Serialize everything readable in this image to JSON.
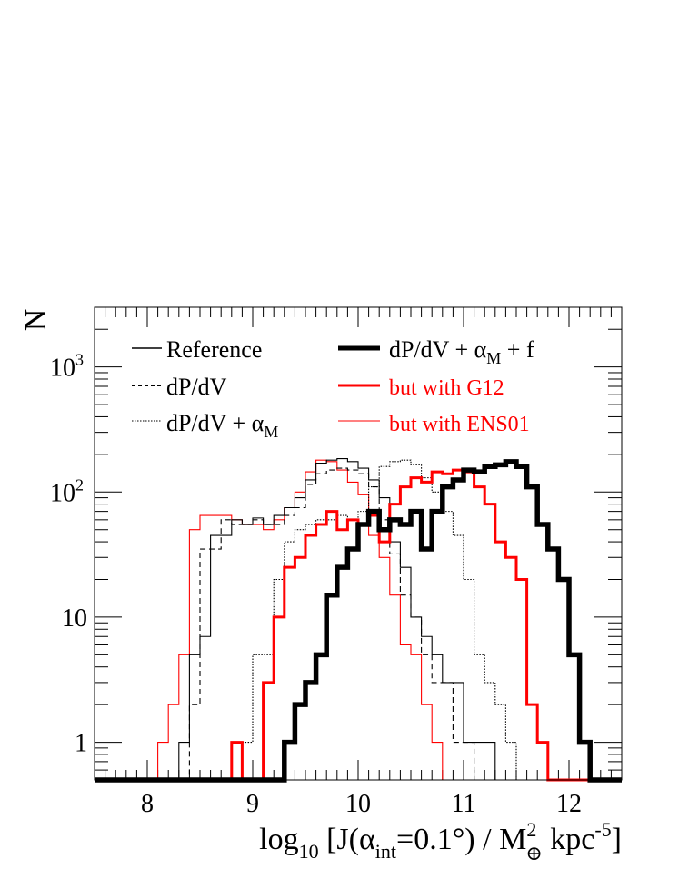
{
  "chart_data": {
    "type": "histogram-step",
    "y_axis_label": "N",
    "x_axis_label": {
      "prefix": "log",
      "prefix_sub": "10",
      "body": " [J(α",
      "alpha_sub": "int",
      "body2": "=0.1°) / M",
      "mass_sup": "2",
      "mass_sub": "⊕",
      "unit": " kpc",
      "unit_sup": "-5",
      "close": "]"
    },
    "x_range": [
      7.5,
      12.5
    ],
    "y_range": [
      0.5,
      3000
    ],
    "y_scale": "log",
    "x_ticks": [
      "8",
      "9",
      "10",
      "11",
      "12"
    ],
    "y_ticks": [
      {
        "value": 1,
        "base": "1",
        "exp": ""
      },
      {
        "value": 10,
        "base": "10",
        "exp": ""
      },
      {
        "value": 100,
        "base": "10",
        "exp": "2"
      },
      {
        "value": 1000,
        "base": "10",
        "exp": "3"
      }
    ],
    "bin_start": 7.5,
    "bin_width": 0.1,
    "floor_value": 0.5,
    "legend": [
      {
        "series_index": 0,
        "label": "Reference",
        "sub": ""
      },
      {
        "series_index": 1,
        "label": "dP/dV",
        "sub": ""
      },
      {
        "series_index": 2,
        "label": "dP/dV + α",
        "sub": "M"
      },
      {
        "series_index": 3,
        "label": "dP/dV + α",
        "sub": "M",
        "label_suffix": " + f"
      },
      {
        "series_index": 4,
        "label": " but with G12",
        "sub": ""
      },
      {
        "series_index": 5,
        "label": " but with ENS01",
        "sub": ""
      }
    ],
    "series": [
      {
        "key": "reference",
        "color": "#000000",
        "style": "solid",
        "weight": "thin",
        "counts": [
          0,
          0,
          0,
          0,
          0,
          0,
          0,
          0,
          1,
          5,
          7,
          45,
          45,
          60,
          55,
          62,
          55,
          65,
          75,
          90,
          125,
          170,
          180,
          185,
          175,
          155,
          125,
          90,
          40,
          25,
          10,
          7,
          5,
          3,
          3,
          1,
          1,
          1,
          0,
          0,
          0,
          0,
          0,
          0,
          0,
          0,
          0,
          0,
          0,
          0
        ]
      },
      {
        "key": "dpdv",
        "color": "#000000",
        "style": "dashed",
        "weight": "thin",
        "counts": [
          0,
          0,
          0,
          0,
          0,
          0,
          0,
          0,
          0,
          2,
          35,
          35,
          60,
          55,
          55,
          60,
          55,
          55,
          65,
          75,
          115,
          140,
          150,
          155,
          150,
          140,
          110,
          60,
          32,
          15,
          10,
          5,
          3,
          3,
          1,
          1,
          0,
          0,
          0,
          0,
          0,
          0,
          0,
          0,
          0,
          0,
          0,
          0,
          0,
          0
        ]
      },
      {
        "key": "dpdv_alpha",
        "color": "#000000",
        "style": "dotted",
        "weight": "thin",
        "counts": [
          0,
          0,
          0,
          0,
          0,
          0,
          0,
          0,
          0,
          0,
          0,
          0,
          0,
          0,
          1,
          5,
          5,
          20,
          40,
          50,
          55,
          60,
          60,
          65,
          60,
          70,
          110,
          160,
          175,
          180,
          165,
          130,
          100,
          70,
          45,
          20,
          5,
          3,
          2,
          1,
          0,
          0,
          0,
          0,
          0,
          0,
          0,
          0,
          0,
          0
        ]
      },
      {
        "key": "dpdv_alpha_f",
        "color": "#000000",
        "style": "solid",
        "weight": "thick",
        "counts": [
          0,
          0,
          0,
          0,
          0,
          0,
          0,
          0,
          0,
          0,
          0,
          0,
          0,
          0,
          0,
          0,
          0,
          0,
          1,
          2,
          3,
          5,
          15,
          25,
          35,
          55,
          70,
          50,
          60,
          55,
          70,
          35,
          70,
          110,
          125,
          150,
          145,
          160,
          165,
          175,
          160,
          110,
          55,
          35,
          20,
          5,
          1,
          0,
          0,
          0
        ]
      },
      {
        "key": "g12",
        "color": "#ff0000",
        "style": "solid",
        "weight": "medium",
        "counts": [
          0,
          0,
          0,
          0,
          0,
          0,
          0,
          0,
          0,
          0,
          0,
          0,
          0,
          1,
          0,
          0,
          3,
          10,
          25,
          30,
          45,
          55,
          70,
          50,
          60,
          55,
          65,
          40,
          80,
          110,
          130,
          120,
          145,
          140,
          150,
          145,
          110,
          80,
          40,
          30,
          20,
          2,
          1,
          0,
          0,
          0,
          0,
          0,
          0,
          0
        ]
      },
      {
        "key": "ens01",
        "color": "#ff0000",
        "style": "solid",
        "weight": "thin",
        "counts": [
          0,
          0,
          0,
          0,
          0,
          0,
          1,
          2,
          5,
          50,
          65,
          65,
          65,
          60,
          55,
          55,
          50,
          60,
          75,
          100,
          145,
          180,
          175,
          150,
          120,
          95,
          45,
          30,
          15,
          6,
          5,
          2,
          1,
          0,
          0,
          0,
          0,
          0,
          0,
          0,
          0,
          0,
          0,
          0,
          0,
          0,
          0,
          0,
          0,
          0
        ]
      }
    ]
  }
}
